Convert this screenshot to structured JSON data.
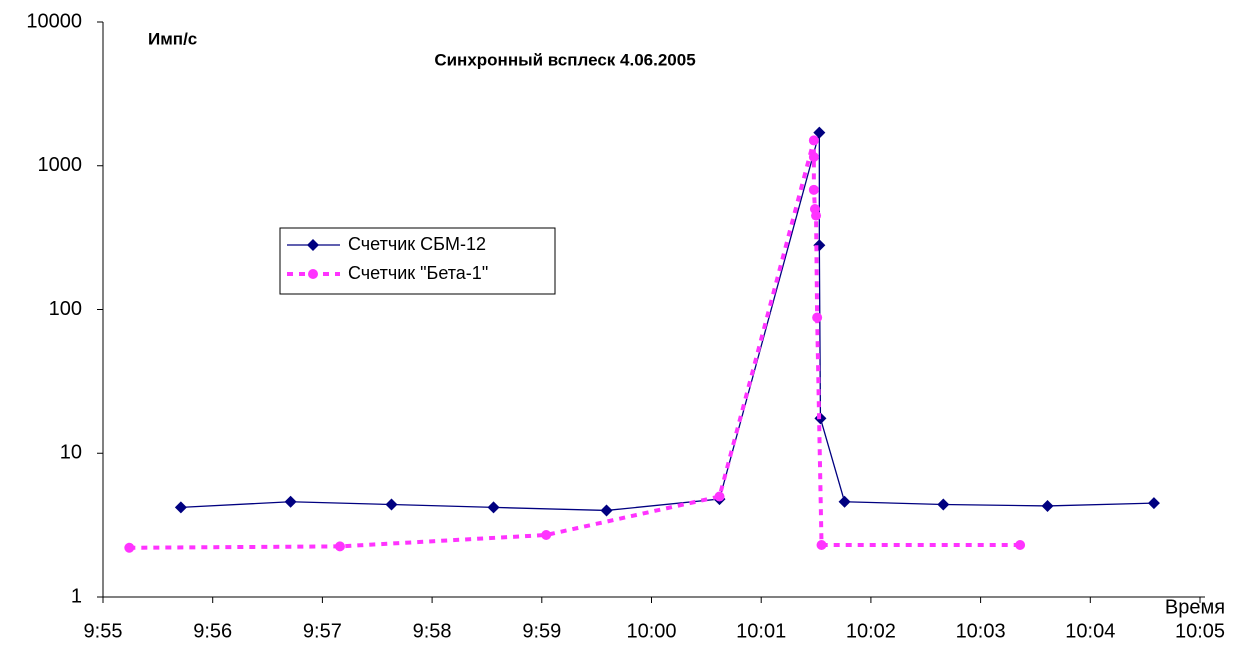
{
  "chart_data": {
    "type": "line",
    "title": "Синхронный всплеск 4.06.2005",
    "ylabel": "Имп/с",
    "xlabel": "Время",
    "ylog": true,
    "xlim": [
      595,
      605
    ],
    "ylim": [
      1,
      10000
    ],
    "yticks": [
      1,
      10,
      100,
      1000,
      10000
    ],
    "xticks": [
      {
        "value": 595,
        "label": "9:55"
      },
      {
        "value": 596,
        "label": "9:56"
      },
      {
        "value": 597,
        "label": "9:57"
      },
      {
        "value": 598,
        "label": "9:58"
      },
      {
        "value": 599,
        "label": "9:59"
      },
      {
        "value": 600,
        "label": "10:00"
      },
      {
        "value": 601,
        "label": "10:01"
      },
      {
        "value": 602,
        "label": "10:02"
      },
      {
        "value": 603,
        "label": "10:03"
      },
      {
        "value": 604,
        "label": "10:04"
      },
      {
        "value": 605,
        "label": "10:05"
      }
    ],
    "series": [
      {
        "name": "Счетчик СБМ-12",
        "color": "#000080",
        "marker": "diamond",
        "dash": false,
        "x": [
          595.71,
          596.71,
          597.63,
          598.56,
          599.59,
          600.62,
          601.53,
          601.53,
          601.54,
          601.76,
          602.66,
          603.61,
          604.58
        ],
        "values": [
          4.2,
          4.6,
          4.4,
          4.2,
          4.0,
          4.8,
          1700,
          280,
          17.5,
          4.6,
          4.4,
          4.3,
          4.5
        ]
      },
      {
        "name": "Счетчик \"Бета-1\"",
        "color": "#ff33ff",
        "marker": "circle",
        "dash": true,
        "x": [
          595.24,
          597.16,
          599.04,
          600.62,
          601.48,
          601.48,
          601.48,
          601.49,
          601.5,
          601.51,
          601.55,
          603.36
        ],
        "values": [
          2.2,
          2.25,
          2.7,
          5.0,
          1500,
          1150,
          680,
          500,
          450,
          88,
          2.3,
          2.3
        ]
      }
    ]
  }
}
